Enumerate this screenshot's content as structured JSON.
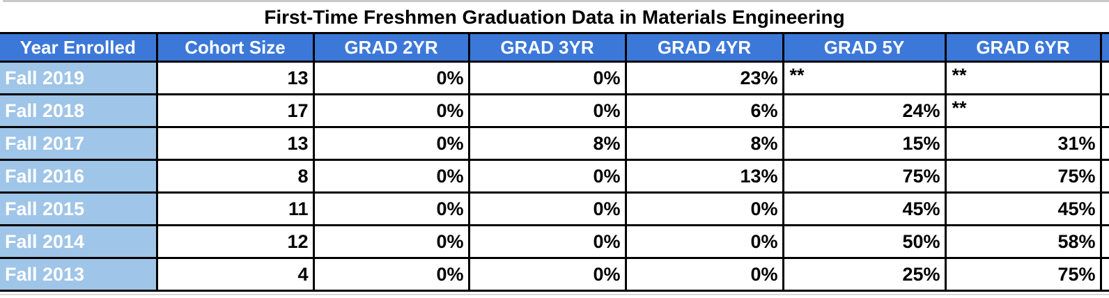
{
  "title": "First-Time Freshmen Graduation Data in Materials Engineering",
  "chart_data": {
    "type": "table",
    "title": "First-Time Freshmen Graduation Data in Materials Engineering",
    "columns": [
      "Year Enrolled",
      "Cohort Size",
      "GRAD 2YR",
      "GRAD 3YR",
      "GRAD 4YR",
      "GRAD 5Y",
      "GRAD 6YR"
    ],
    "rows": [
      [
        "Fall 2019",
        "13",
        "0%",
        "0%",
        "23%",
        "**",
        "**"
      ],
      [
        "Fall 2018",
        "17",
        "0%",
        "0%",
        "6%",
        "24%",
        "**"
      ],
      [
        "Fall 2017",
        "13",
        "0%",
        "8%",
        "8%",
        "15%",
        "31%"
      ],
      [
        "Fall 2016",
        "8",
        "0%",
        "0%",
        "13%",
        "75%",
        "75%"
      ],
      [
        "Fall 2015",
        "11",
        "0%",
        "0%",
        "0%",
        "45%",
        "45%"
      ],
      [
        "Fall 2014",
        "12",
        "0%",
        "0%",
        "0%",
        "50%",
        "58%"
      ],
      [
        "Fall 2013",
        "4",
        "0%",
        "0%",
        "0%",
        "25%",
        "75%"
      ]
    ],
    "suppressed_marker": "**"
  },
  "colors": {
    "header_bg": "#3c78d8",
    "year_col_bg": "#9fc5e8",
    "border": "#000000",
    "header_text": "#ffffff",
    "cell_text": "#000000",
    "top_gridline": "#c9c9c9",
    "bottom_gridline": "#d9d9d9"
  }
}
